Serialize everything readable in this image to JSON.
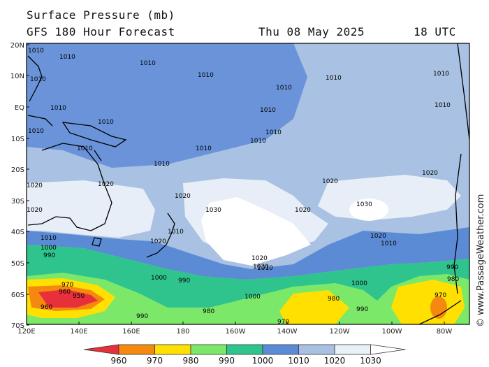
{
  "header": {
    "title_line1": "Surface Pressure (mb)",
    "title_line2": "GFS 180 Hour Forecast",
    "date": "Thu 08 May 2025",
    "time": "18 UTC"
  },
  "watermark": "© www.PassageWeather.com",
  "axes": {
    "lat_labels": [
      "20N",
      "10N",
      "EQ",
      "10S",
      "20S",
      "30S",
      "40S",
      "50S",
      "60S",
      "70S"
    ],
    "lon_labels": [
      "120E",
      "140E",
      "160E",
      "180",
      "160W",
      "140W",
      "120W",
      "100W",
      "80W"
    ]
  },
  "legend": {
    "values": [
      "960",
      "970",
      "980",
      "990",
      "1000",
      "1010",
      "1020",
      "1030"
    ],
    "colors": [
      "#e8303a",
      "#f5890f",
      "#ffe000",
      "#7ce86a",
      "#2fc48d",
      "#5c8bd6",
      "#a8c0e2",
      "#e9f0f8"
    ]
  },
  "isobar_labels": [
    {
      "text": "1010",
      "id": "l1"
    },
    {
      "text": "1020",
      "id": "l2"
    },
    {
      "text": "1030",
      "id": "l3"
    },
    {
      "text": "1000",
      "id": "l4"
    },
    {
      "text": "990",
      "id": "l5"
    },
    {
      "text": "980",
      "id": "l6"
    },
    {
      "text": "970",
      "id": "l7"
    },
    {
      "text": "960",
      "id": "l8"
    },
    {
      "text": "950",
      "id": "l9"
    }
  ],
  "colors": {
    "p1010": "#6a93d9",
    "p1020": "#a9c1e2",
    "p1030": "#e8eef7",
    "p1000": "#5d86cf",
    "p990": "#2fc48d",
    "p980": "#7ce86a",
    "p970": "#ffe000",
    "p960": "#f5890f",
    "p950": "#e8303a"
  }
}
